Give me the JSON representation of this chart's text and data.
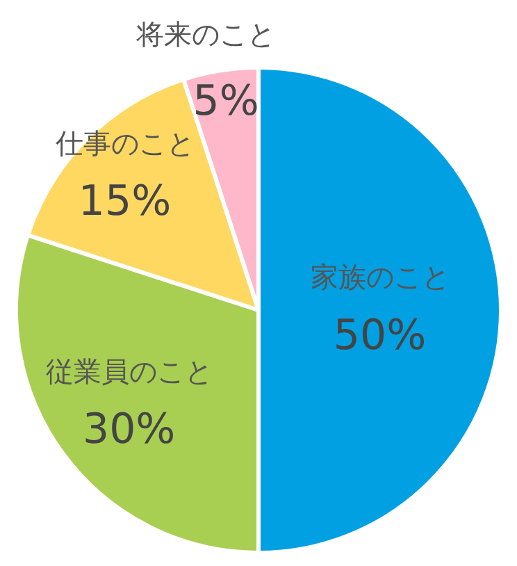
{
  "chart_data": {
    "type": "pie",
    "categories": [
      "家族のこと",
      "従業員のこと",
      "仕事のこと",
      "将来のこと"
    ],
    "values": [
      50,
      30,
      15,
      5
    ],
    "value_labels": [
      "50%",
      "30%",
      "15%",
      "5%"
    ],
    "colors": [
      "#00a0e3",
      "#a9cf52",
      "#ffd862",
      "#ffb8c9"
    ],
    "legend": false
  }
}
